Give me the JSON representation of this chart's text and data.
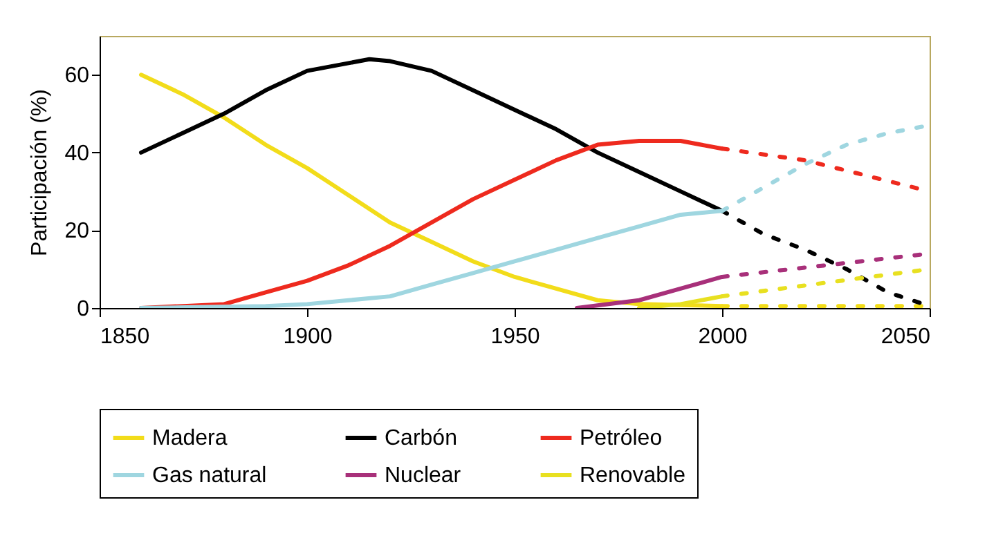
{
  "chart_data": {
    "type": "line",
    "ylabel": "Participación (%)",
    "xlim": [
      1850,
      2050
    ],
    "xticks": [
      1850,
      1900,
      1950,
      2000,
      2050
    ],
    "ylim": [
      0,
      70
    ],
    "yticks": [
      0,
      20,
      40,
      60
    ],
    "grid": false,
    "legend": "bottom",
    "series": [
      {
        "name": "Madera",
        "color": "#f2dc1a",
        "line_style": "solid",
        "x": [
          1860,
          1870,
          1880,
          1890,
          1900,
          1910,
          1920,
          1930,
          1940,
          1950,
          1960,
          1970,
          1980,
          2000
        ],
        "values": [
          60,
          55,
          49,
          42,
          36,
          29,
          22,
          17,
          12,
          8,
          5,
          2,
          1,
          0.5
        ]
      },
      {
        "color": "#f2dc1a",
        "line_style": "dotted",
        "x": [
          2000,
          2050
        ],
        "values": [
          0.5,
          0.5
        ]
      },
      {
        "name": "Carbón",
        "color": "#000000",
        "line_style": "solid",
        "x": [
          1860,
          1870,
          1880,
          1890,
          1900,
          1910,
          1915,
          1920,
          1930,
          1940,
          1950,
          1960,
          1970,
          1980,
          1990,
          2000
        ],
        "values": [
          40,
          45,
          50,
          56,
          61,
          63,
          64,
          63.5,
          61,
          56,
          51,
          46,
          40,
          35,
          30,
          25
        ]
      },
      {
        "color": "#000000",
        "line_style": "dotted",
        "x": [
          2000,
          2010,
          2020,
          2030,
          2040,
          2050
        ],
        "values": [
          25,
          19,
          15,
          10,
          4,
          0.5
        ]
      },
      {
        "name": "Petróleo",
        "color": "#ee2a1e",
        "line_style": "solid",
        "x": [
          1860,
          1880,
          1890,
          1900,
          1910,
          1920,
          1930,
          1940,
          1950,
          1960,
          1970,
          1980,
          1990,
          2000
        ],
        "values": [
          0,
          1,
          4,
          7,
          11,
          16,
          22,
          28,
          33,
          38,
          42,
          43,
          43,
          41
        ]
      },
      {
        "color": "#ee2a1e",
        "line_style": "dotted",
        "x": [
          2000,
          2020,
          2050
        ],
        "values": [
          41,
          38,
          30
        ]
      },
      {
        "name": "Gas natural",
        "color": "#9fd6e0",
        "line_style": "solid",
        "x": [
          1860,
          1890,
          1900,
          1910,
          1920,
          1930,
          1940,
          1950,
          1960,
          1970,
          1980,
          1990,
          2000
        ],
        "values": [
          0,
          0.5,
          1,
          2,
          3,
          6,
          9,
          12,
          15,
          18,
          21,
          24,
          25
        ]
      },
      {
        "color": "#9fd6e0",
        "line_style": "dotted",
        "x": [
          2000,
          2010,
          2020,
          2030,
          2040,
          2050
        ],
        "values": [
          25,
          31,
          37,
          42,
          45,
          47
        ]
      },
      {
        "name": "Nuclear",
        "color": "#a8307a",
        "line_style": "solid",
        "x": [
          1965,
          1980,
          1990,
          2000
        ],
        "values": [
          0,
          2,
          5,
          8
        ]
      },
      {
        "color": "#a8307a",
        "line_style": "dotted",
        "x": [
          2000,
          2050
        ],
        "values": [
          8,
          14
        ]
      },
      {
        "name": "Renovable",
        "color": "#e8e020",
        "line_style": "solid",
        "x": [
          1980,
          1990,
          2000
        ],
        "values": [
          0,
          1,
          3
        ]
      },
      {
        "color": "#e8e020",
        "line_style": "dotted",
        "x": [
          2000,
          2050
        ],
        "values": [
          3,
          10
        ]
      }
    ]
  }
}
